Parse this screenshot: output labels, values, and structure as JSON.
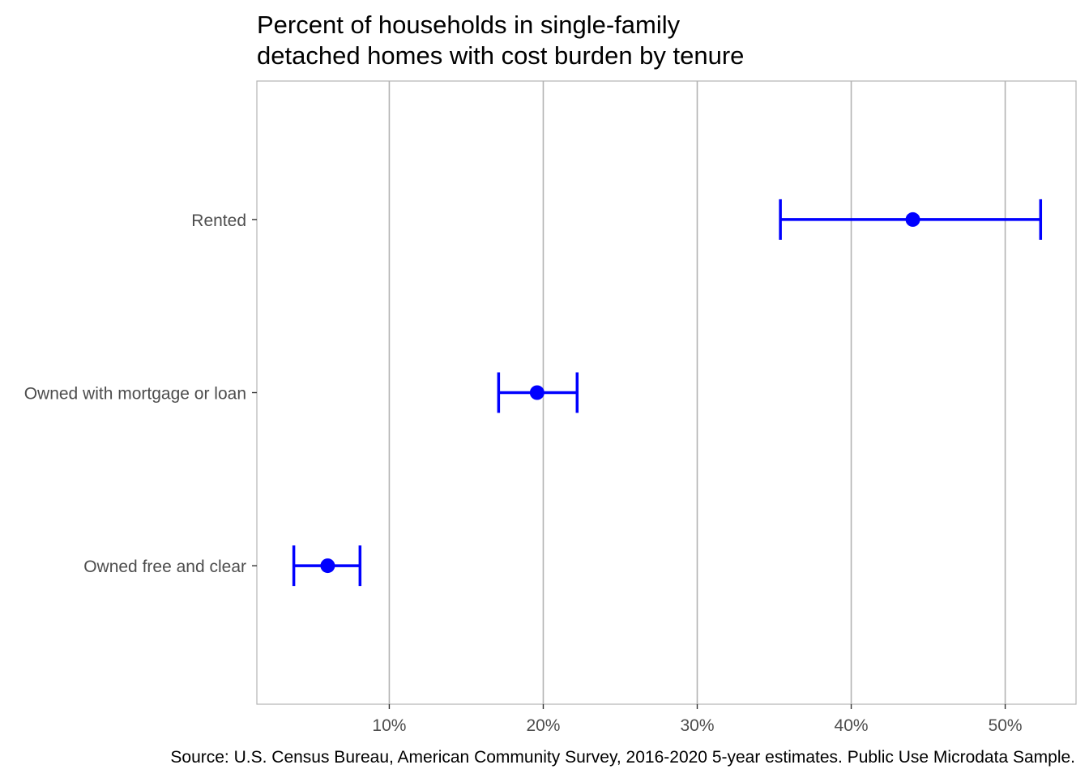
{
  "chart_data": {
    "type": "errorbar",
    "title": "Percent of households in single-family\ndetached homes with cost burden by tenure",
    "title_lines": [
      "Percent of households in single-family",
      "detached homes with cost burden by tenure"
    ],
    "xlabel": "",
    "ylabel": "",
    "caption": "Source: U.S. Census Bureau, American Community Survey, 2016-2020 5-year estimates. Public Use Microdata Sample.",
    "xlim": [
      1.4,
      54.6
    ],
    "x_ticks": [
      10,
      20,
      30,
      40,
      50
    ],
    "x_tick_labels": [
      "10%",
      "20%",
      "30%",
      "40%",
      "50%"
    ],
    "grid": "vertical-major",
    "color": "#0000ff",
    "categories": [
      "Rented",
      "Owned with mortgage or loan",
      "Owned free and clear"
    ],
    "points": [
      {
        "category": "Rented",
        "value": 44.0,
        "low": 35.4,
        "high": 52.3
      },
      {
        "category": "Owned with mortgage or loan",
        "value": 19.6,
        "low": 17.1,
        "high": 22.2
      },
      {
        "category": "Owned free and clear",
        "value": 6.0,
        "low": 3.8,
        "high": 8.1
      }
    ]
  }
}
